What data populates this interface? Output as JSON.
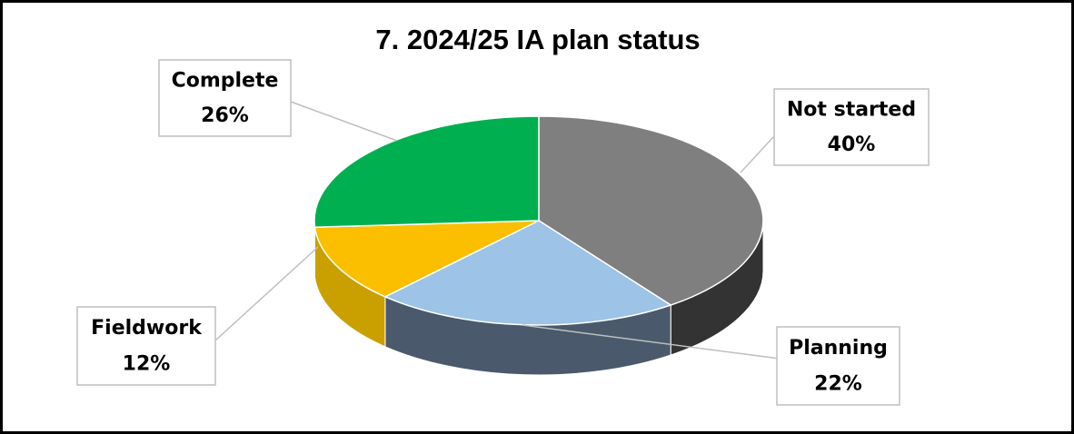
{
  "chart_data": {
    "type": "pie",
    "title": "7. 2024/25 IA plan status",
    "categories": [
      "Not started",
      "Planning",
      "Fieldwork",
      "Complete"
    ],
    "values": [
      40,
      22,
      12,
      26
    ],
    "value_labels": [
      "40%",
      "22%",
      "12%",
      "26%"
    ],
    "colors": [
      "#7f7f7f",
      "#9dc3e6",
      "#fbbf00",
      "#00b050"
    ],
    "side_colors": [
      "#333333",
      "#4a5a6c",
      "#c9a000",
      "#007a3a"
    ]
  }
}
